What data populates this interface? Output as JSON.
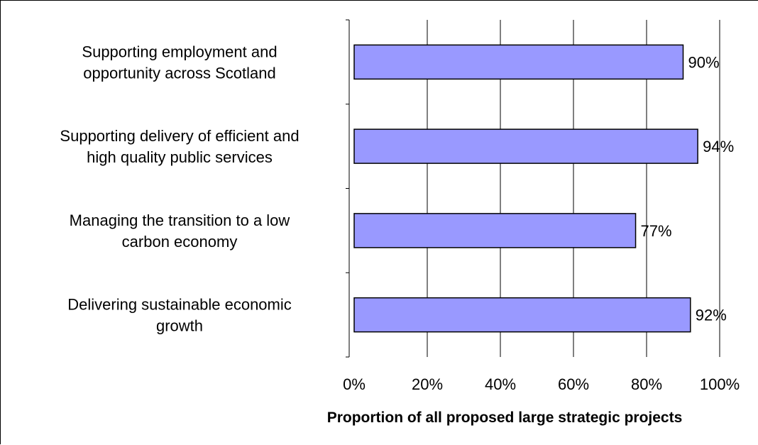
{
  "chart_data": {
    "type": "bar",
    "orientation": "horizontal",
    "categories": [
      [
        "Supporting employment and",
        "opportunity across Scotland"
      ],
      [
        "Supporting delivery of efficient and",
        "high quality public services"
      ],
      [
        "Managing the transition to a low",
        "carbon economy"
      ],
      [
        "Delivering sustainable economic",
        "growth"
      ]
    ],
    "values": [
      90,
      94,
      77,
      92
    ],
    "data_labels": [
      "90%",
      "94%",
      "77%",
      "92%"
    ],
    "xlabel": "Proportion of all proposed large strategic projects",
    "ylabel": "",
    "xlim": [
      0,
      100
    ],
    "x_ticks": [
      0,
      20,
      40,
      60,
      80,
      100
    ],
    "x_tick_labels": [
      "0%",
      "20%",
      "40%",
      "60%",
      "80%",
      "100%"
    ],
    "grid": "vertical",
    "bar_color": "#9999ff",
    "legend": "none"
  }
}
